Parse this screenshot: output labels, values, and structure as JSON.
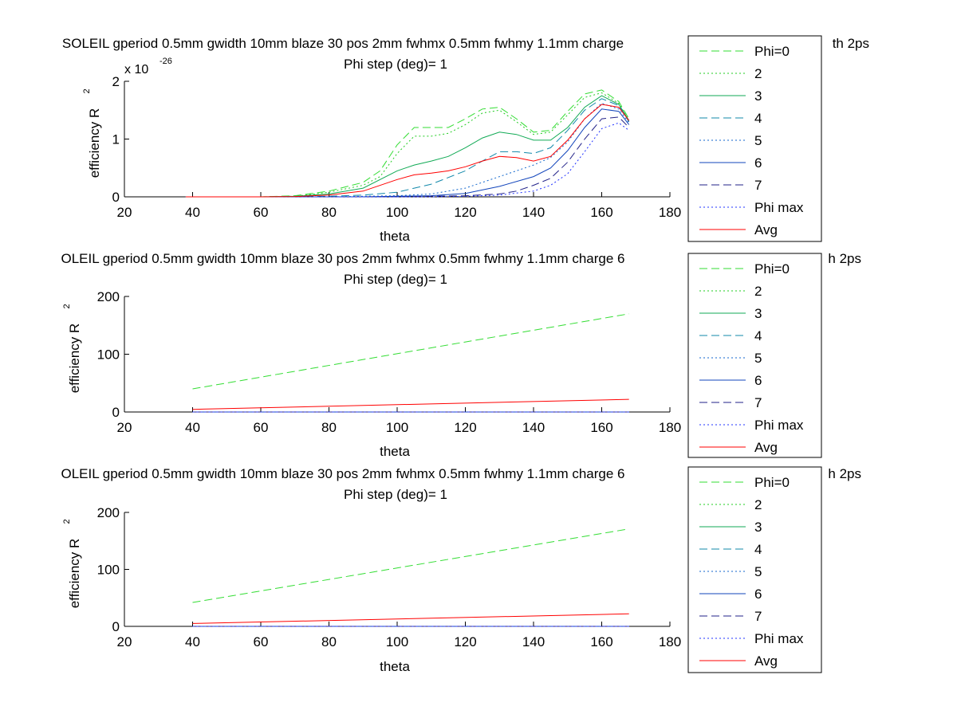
{
  "window": {
    "background": "#ffffff"
  },
  "legend_styles": [
    {
      "label": "Phi=0",
      "color": "#33dd33",
      "dash": "10,5"
    },
    {
      "label": "2",
      "color": "#22cc22",
      "dash": "2,3"
    },
    {
      "label": "3",
      "color": "#11aa55",
      "dash": ""
    },
    {
      "label": "4",
      "color": "#1188aa",
      "dash": "10,5"
    },
    {
      "label": "5",
      "color": "#1166cc",
      "dash": "2,3"
    },
    {
      "label": "6",
      "color": "#1144bb",
      "dash": ""
    },
    {
      "label": "7",
      "color": "#222288",
      "dash": "10,5"
    },
    {
      "label": "Phi max",
      "color": "#2233ff",
      "dash": "2,3"
    },
    {
      "label": "Avg",
      "color": "#ff0000",
      "dash": ""
    }
  ],
  "chart_data": [
    {
      "type": "line",
      "title": "SOLEIL gperiod 0.5mm gwidth 10mm blaze 30 pos 2mm fwhmx 0.5mm fwhmy 1.1mm charge",
      "title_right": "th 2ps",
      "subtitle": "Phi step (deg)= 1",
      "xlabel": "theta",
      "ylabel": "efficiency R",
      "ylabel_sup": "2",
      "exponent": "x 10",
      "exponent_sup": "-26",
      "xlim": [
        20,
        180
      ],
      "ylim": [
        0,
        2
      ],
      "xticks": [
        "20",
        "40",
        "60",
        "80",
        "100",
        "120",
        "140",
        "160",
        "180"
      ],
      "yticks": [
        "0",
        "1",
        "2"
      ],
      "legend": [
        "Phi=0",
        "2",
        "3",
        "4",
        "5",
        "6",
        "7",
        "Phi max",
        "Avg"
      ],
      "series": [
        {
          "name": "Phi=0",
          "x": [
            38,
            60,
            70,
            80,
            90,
            95,
            100,
            105,
            110,
            115,
            120,
            125,
            130,
            135,
            140,
            145,
            150,
            155,
            160,
            165,
            168
          ],
          "y": [
            0,
            0,
            0.02,
            0.1,
            0.25,
            0.45,
            0.9,
            1.2,
            1.2,
            1.2,
            1.35,
            1.52,
            1.55,
            1.35,
            1.12,
            1.15,
            1.48,
            1.78,
            1.85,
            1.65,
            1.35
          ]
        },
        {
          "name": "2",
          "x": [
            38,
            60,
            70,
            80,
            90,
            95,
            100,
            105,
            110,
            115,
            120,
            125,
            130,
            135,
            140,
            145,
            150,
            155,
            160,
            165,
            168
          ],
          "y": [
            0,
            0,
            0.01,
            0.08,
            0.2,
            0.35,
            0.75,
            1.05,
            1.05,
            1.1,
            1.25,
            1.45,
            1.5,
            1.3,
            1.08,
            1.12,
            1.42,
            1.72,
            1.8,
            1.62,
            1.32
          ]
        },
        {
          "name": "3",
          "x": [
            38,
            60,
            70,
            80,
            90,
            100,
            105,
            110,
            115,
            120,
            125,
            130,
            135,
            140,
            145,
            150,
            155,
            160,
            165,
            168
          ],
          "y": [
            0,
            0,
            0.01,
            0.05,
            0.15,
            0.45,
            0.55,
            0.62,
            0.7,
            0.85,
            1.02,
            1.12,
            1.08,
            0.98,
            0.98,
            1.2,
            1.55,
            1.75,
            1.6,
            1.32
          ]
        },
        {
          "name": "4",
          "x": [
            38,
            60,
            80,
            90,
            100,
            110,
            120,
            125,
            130,
            135,
            140,
            145,
            150,
            155,
            160,
            165,
            168
          ],
          "y": [
            0,
            0,
            0.01,
            0.03,
            0.08,
            0.22,
            0.45,
            0.62,
            0.78,
            0.78,
            0.75,
            0.85,
            1.15,
            1.5,
            1.7,
            1.58,
            1.3
          ]
        },
        {
          "name": "5",
          "x": [
            38,
            60,
            80,
            90,
            100,
            110,
            120,
            130,
            140,
            145,
            150,
            155,
            160,
            165,
            168
          ],
          "y": [
            0,
            0,
            0,
            0.01,
            0.02,
            0.05,
            0.15,
            0.35,
            0.55,
            0.68,
            0.95,
            1.35,
            1.62,
            1.52,
            1.28
          ]
        },
        {
          "name": "6",
          "x": [
            38,
            60,
            80,
            90,
            100,
            110,
            120,
            130,
            140,
            145,
            150,
            155,
            160,
            165,
            168
          ],
          "y": [
            0,
            0,
            0,
            0,
            0.01,
            0.02,
            0.06,
            0.18,
            0.35,
            0.5,
            0.8,
            1.2,
            1.52,
            1.48,
            1.25
          ]
        },
        {
          "name": "7",
          "x": [
            38,
            60,
            80,
            100,
            110,
            120,
            130,
            135,
            140,
            145,
            150,
            155,
            160,
            165,
            168
          ],
          "y": [
            0,
            0,
            0,
            0,
            0.01,
            0.02,
            0.05,
            0.1,
            0.2,
            0.32,
            0.6,
            1.0,
            1.35,
            1.38,
            1.2
          ]
        },
        {
          "name": "Phi max",
          "x": [
            38,
            60,
            80,
            100,
            110,
            120,
            130,
            140,
            145,
            150,
            155,
            160,
            165,
            168
          ],
          "y": [
            0,
            0,
            0,
            0,
            0,
            0.01,
            0.03,
            0.1,
            0.2,
            0.4,
            0.78,
            1.18,
            1.28,
            1.15
          ]
        },
        {
          "name": "Avg",
          "x": [
            38,
            60,
            70,
            80,
            90,
            100,
            105,
            110,
            115,
            120,
            125,
            130,
            135,
            140,
            145,
            150,
            155,
            160,
            165,
            168
          ],
          "y": [
            0,
            0,
            0.005,
            0.03,
            0.1,
            0.3,
            0.38,
            0.41,
            0.45,
            0.52,
            0.62,
            0.7,
            0.68,
            0.62,
            0.7,
            0.98,
            1.35,
            1.6,
            1.55,
            1.32
          ]
        }
      ]
    },
    {
      "type": "line",
      "title": "OLEIL gperiod 0.5mm gwidth 10mm blaze 30 pos 2mm fwhmx 0.5mm fwhmy 1.1mm charge 6",
      "title_right": "h 2ps",
      "subtitle": "Phi step (deg)= 1",
      "xlabel": "theta",
      "ylabel": "efficiency R",
      "ylabel_sup": "2",
      "exponent": "",
      "exponent_sup": "",
      "xlim": [
        20,
        180
      ],
      "ylim": [
        0,
        200
      ],
      "xticks": [
        "20",
        "40",
        "60",
        "80",
        "100",
        "120",
        "140",
        "160",
        "180"
      ],
      "yticks": [
        "0",
        "100",
        "200"
      ],
      "legend": [
        "Phi=0",
        "2",
        "3",
        "4",
        "5",
        "6",
        "7",
        "Phi max",
        "Avg"
      ],
      "series": [
        {
          "name": "Phi=0",
          "x": [
            40,
            168
          ],
          "y": [
            40,
            170
          ]
        },
        {
          "name": "2",
          "x": [
            40,
            168
          ],
          "y": [
            0,
            0
          ]
        },
        {
          "name": "3",
          "x": [
            40,
            168
          ],
          "y": [
            0,
            0
          ]
        },
        {
          "name": "4",
          "x": [
            40,
            168
          ],
          "y": [
            0,
            0
          ]
        },
        {
          "name": "5",
          "x": [
            40,
            168
          ],
          "y": [
            0,
            0
          ]
        },
        {
          "name": "6",
          "x": [
            40,
            168
          ],
          "y": [
            0,
            0
          ]
        },
        {
          "name": "7",
          "x": [
            40,
            168
          ],
          "y": [
            0,
            0
          ]
        },
        {
          "name": "Phi max",
          "x": [
            40,
            168
          ],
          "y": [
            0,
            0
          ]
        },
        {
          "name": "Avg",
          "x": [
            40,
            168
          ],
          "y": [
            4.5,
            22
          ]
        }
      ]
    },
    {
      "type": "line",
      "title": "OLEIL gperiod 0.5mm gwidth 10mm blaze 30 pos 2mm fwhmx 0.5mm fwhmy 1.1mm charge 6",
      "title_right": "h 2ps",
      "subtitle": "Phi step (deg)= 1",
      "xlabel": "theta",
      "ylabel": "efficiency R",
      "ylabel_sup": "2",
      "exponent": "",
      "exponent_sup": "",
      "xlim": [
        20,
        180
      ],
      "ylim": [
        0,
        200
      ],
      "xticks": [
        "20",
        "40",
        "60",
        "80",
        "100",
        "120",
        "140",
        "160",
        "180"
      ],
      "yticks": [
        "0",
        "100",
        "200"
      ],
      "legend": [
        "Phi=0",
        "2",
        "3",
        "4",
        "5",
        "6",
        "7",
        "Phi max",
        "Avg"
      ],
      "series": [
        {
          "name": "Phi=0",
          "x": [
            40,
            168
          ],
          "y": [
            42,
            171
          ]
        },
        {
          "name": "2",
          "x": [
            40,
            168
          ],
          "y": [
            0,
            0
          ]
        },
        {
          "name": "3",
          "x": [
            40,
            168
          ],
          "y": [
            0,
            0
          ]
        },
        {
          "name": "4",
          "x": [
            40,
            168
          ],
          "y": [
            0,
            0
          ]
        },
        {
          "name": "5",
          "x": [
            40,
            168
          ],
          "y": [
            0,
            0
          ]
        },
        {
          "name": "6",
          "x": [
            40,
            168
          ],
          "y": [
            0,
            0
          ]
        },
        {
          "name": "7",
          "x": [
            40,
            168
          ],
          "y": [
            0,
            0
          ]
        },
        {
          "name": "Phi max",
          "x": [
            40,
            168
          ],
          "y": [
            0,
            0
          ]
        },
        {
          "name": "Avg",
          "x": [
            40,
            168
          ],
          "y": [
            5,
            22
          ]
        }
      ]
    }
  ]
}
